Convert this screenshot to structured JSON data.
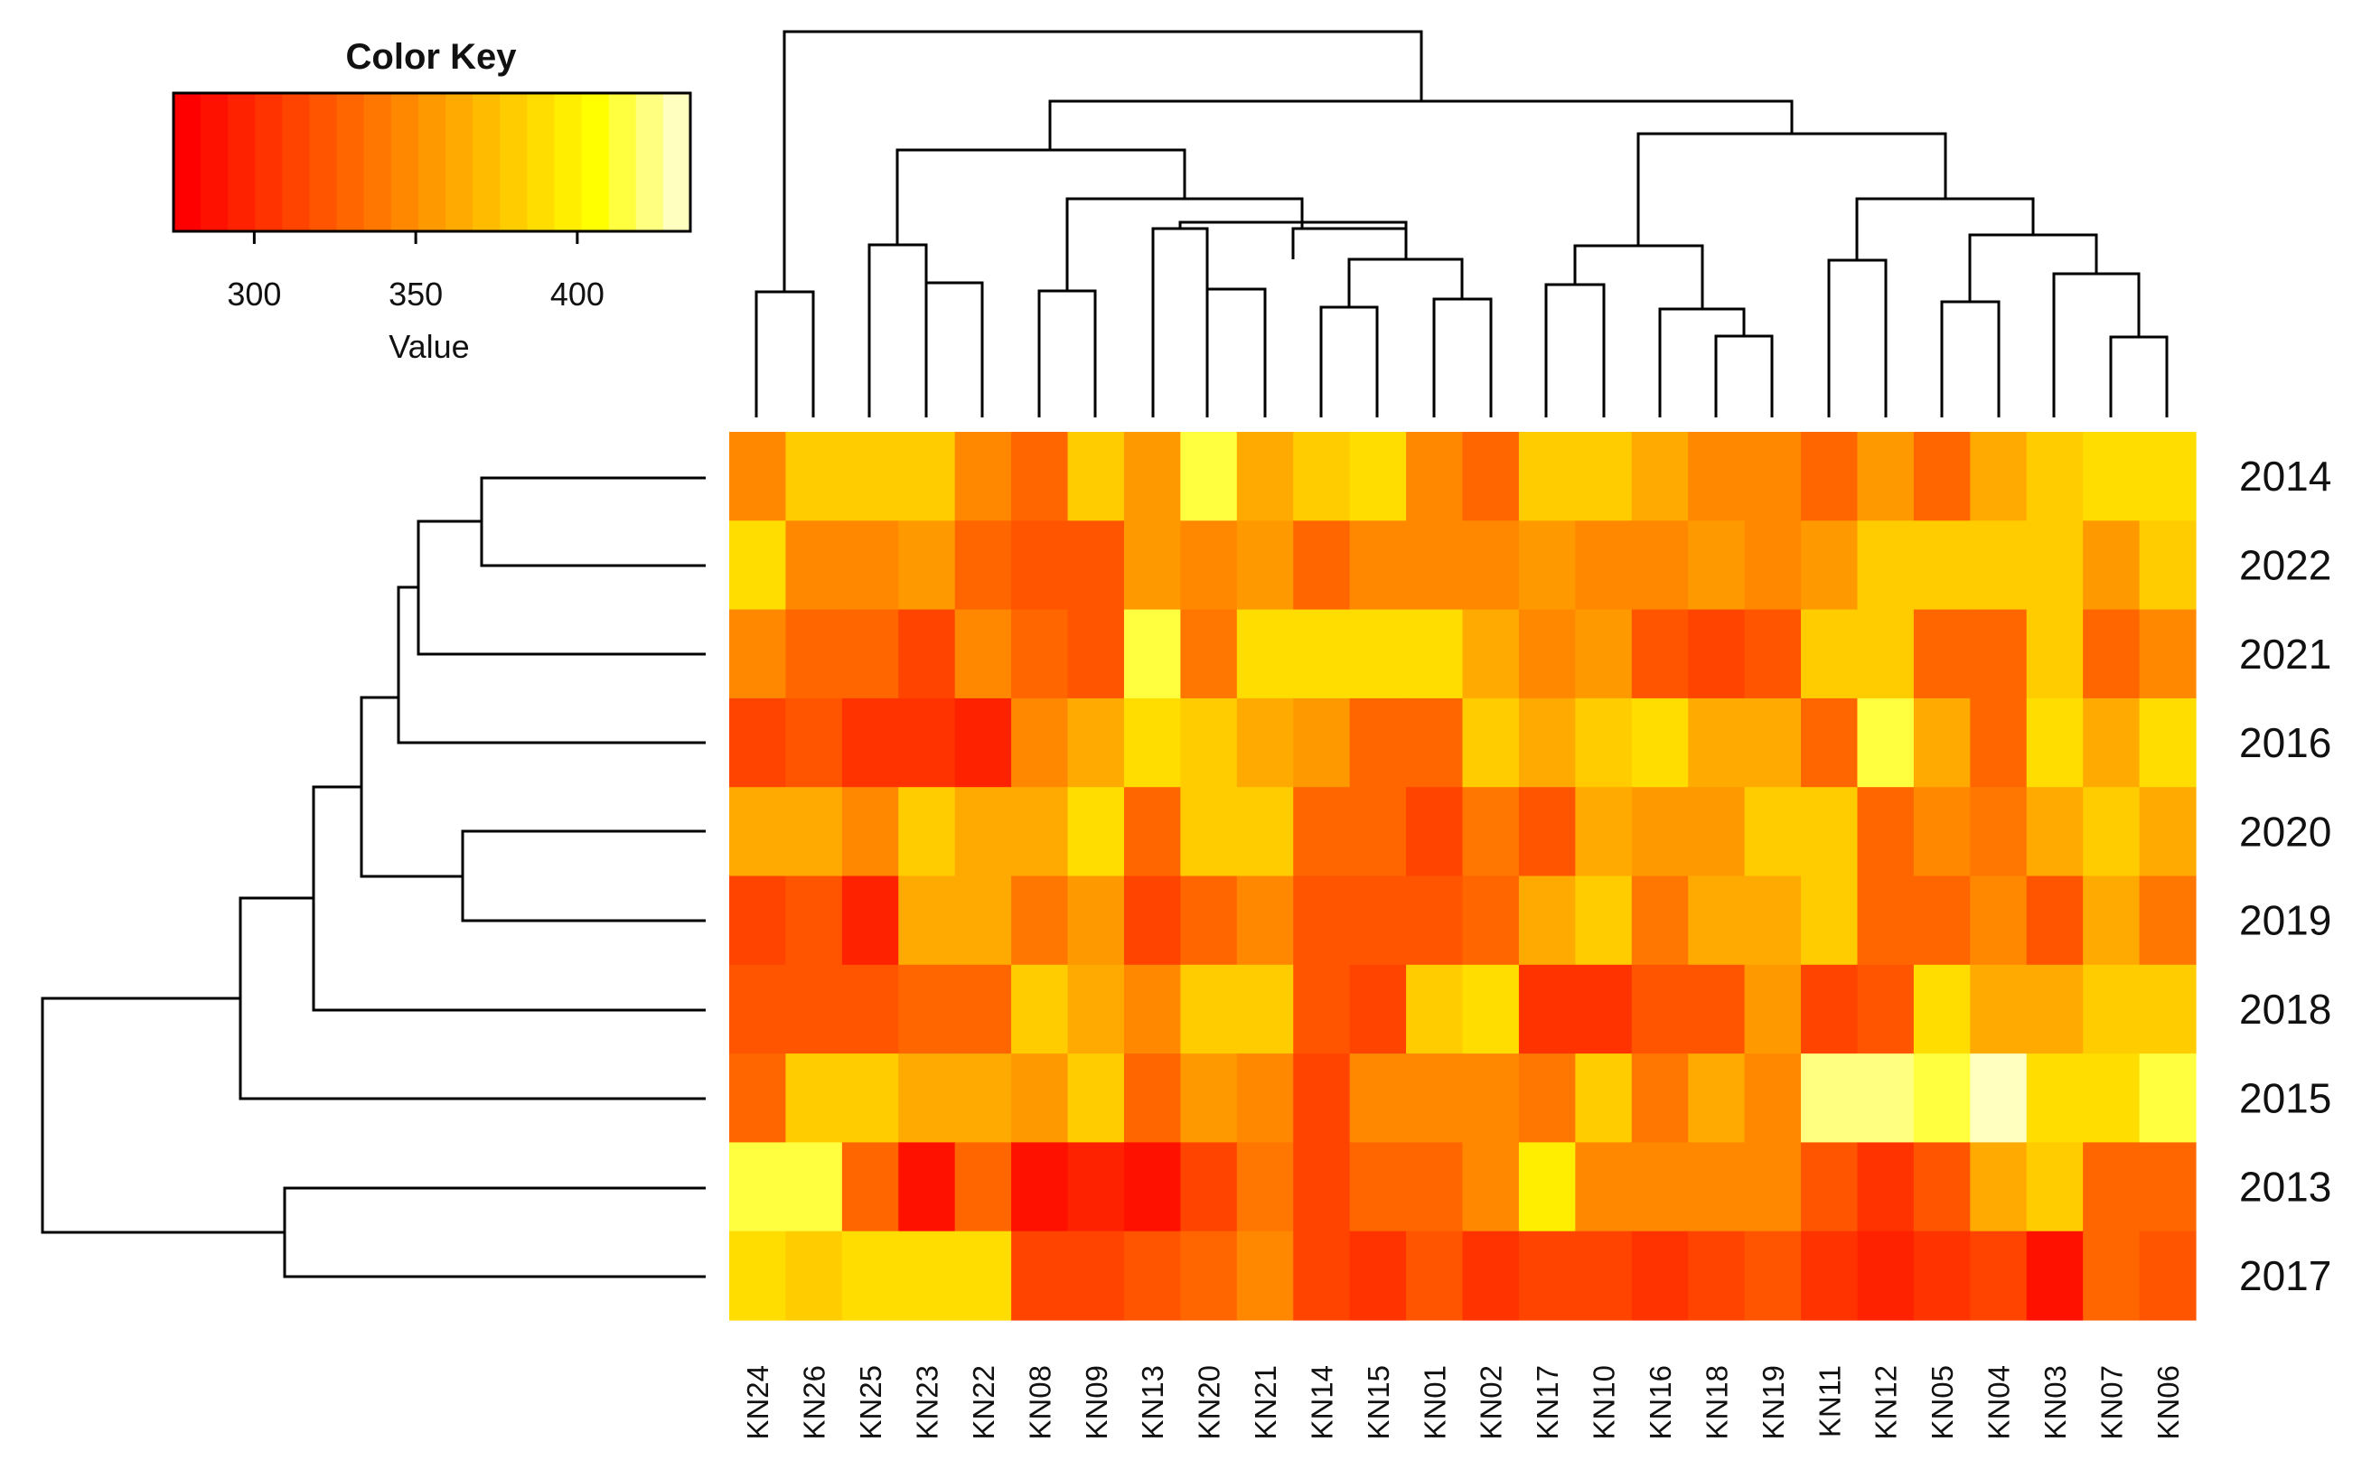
{
  "chart_data": {
    "type": "heatmap",
    "color_key": {
      "title": "Color Key",
      "xlabel": "Value",
      "ticks": [
        300,
        350,
        400
      ],
      "range": [
        275,
        435
      ],
      "colors": [
        "#ff0000",
        "#ff1100",
        "#ff2200",
        "#ff3300",
        "#ff4400",
        "#ff5500",
        "#ff6600",
        "#ff7700",
        "#ff8800",
        "#ff9900",
        "#ffaa00",
        "#ffbb00",
        "#ffcc00",
        "#ffdd00",
        "#ffee00",
        "#ffff00",
        "#ffff40",
        "#ffff80",
        "#ffffc0"
      ]
    },
    "rows": [
      "2014",
      "2022",
      "2021",
      "2016",
      "2020",
      "2019",
      "2018",
      "2015",
      "2013",
      "2017"
    ],
    "columns": [
      "KN24",
      "KN26",
      "KN25",
      "KN23",
      "KN22",
      "KN08",
      "KN09",
      "KN13",
      "KN20",
      "KN21",
      "KN14",
      "KN15",
      "KN01",
      "KN02",
      "KN17",
      "KN10",
      "KN16",
      "KN18",
      "KN19",
      "KN11",
      "KN12",
      "KN05",
      "KN04",
      "KN03",
      "KN07",
      "KN06"
    ],
    "values": [
      [
        346,
        378,
        378,
        378,
        346,
        330,
        378,
        357,
        410,
        367,
        378,
        392,
        346,
        330,
        378,
        378,
        367,
        346,
        346,
        330,
        357,
        330,
        367,
        378,
        392,
        392
      ],
      [
        392,
        346,
        346,
        357,
        330,
        320,
        320,
        357,
        346,
        357,
        330,
        346,
        346,
        346,
        357,
        346,
        346,
        357,
        346,
        357,
        378,
        378,
        378,
        378,
        357,
        378
      ],
      [
        346,
        330,
        330,
        310,
        346,
        330,
        320,
        410,
        335,
        392,
        392,
        392,
        392,
        367,
        346,
        357,
        320,
        310,
        320,
        378,
        378,
        330,
        330,
        378,
        330,
        346
      ],
      [
        310,
        320,
        305,
        305,
        300,
        346,
        367,
        392,
        378,
        367,
        357,
        330,
        330,
        378,
        367,
        378,
        392,
        367,
        367,
        330,
        410,
        367,
        330,
        392,
        367,
        392
      ],
      [
        367,
        367,
        346,
        378,
        367,
        367,
        392,
        330,
        378,
        378,
        330,
        330,
        310,
        335,
        320,
        367,
        357,
        357,
        378,
        378,
        330,
        346,
        335,
        367,
        378,
        367
      ],
      [
        310,
        320,
        300,
        367,
        367,
        335,
        357,
        310,
        330,
        346,
        320,
        320,
        320,
        330,
        367,
        378,
        335,
        367,
        367,
        378,
        330,
        330,
        346,
        320,
        367,
        335
      ],
      [
        320,
        320,
        320,
        330,
        330,
        378,
        367,
        346,
        378,
        378,
        320,
        310,
        378,
        392,
        305,
        305,
        320,
        320,
        357,
        310,
        320,
        392,
        367,
        367,
        378,
        378
      ],
      [
        330,
        378,
        378,
        367,
        367,
        357,
        378,
        330,
        357,
        346,
        315,
        346,
        346,
        346,
        335,
        378,
        335,
        367,
        346,
        425,
        425,
        410,
        433,
        392,
        392,
        410
      ],
      [
        410,
        410,
        330,
        290,
        330,
        290,
        295,
        290,
        310,
        335,
        310,
        330,
        330,
        346,
        400,
        346,
        346,
        346,
        346,
        320,
        305,
        320,
        367,
        378,
        330,
        330
      ],
      [
        392,
        378,
        392,
        392,
        392,
        310,
        310,
        320,
        330,
        346,
        315,
        305,
        320,
        305,
        310,
        310,
        305,
        310,
        320,
        305,
        295,
        305,
        310,
        290,
        330,
        320
      ]
    ]
  }
}
